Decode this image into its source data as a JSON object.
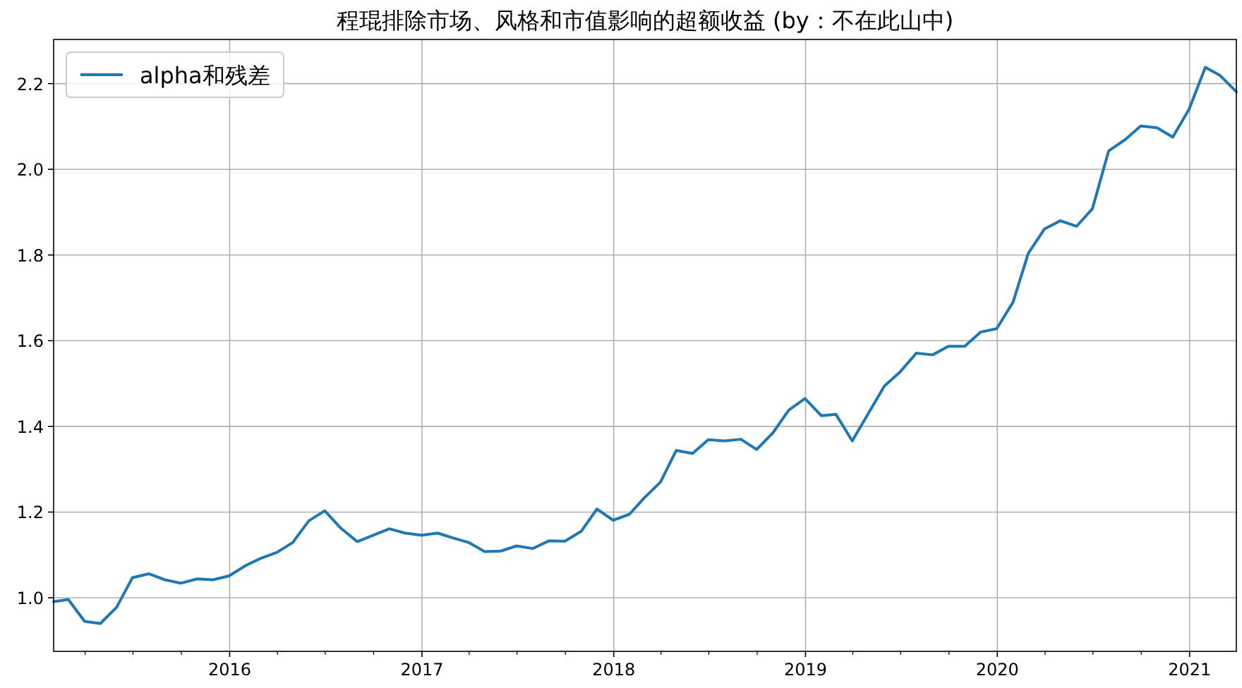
{
  "chart_data": {
    "type": "line",
    "title": "程琨排除市场、风格和市值影响的超额收益 (by：不在此山中)",
    "x": [
      "2015-01-31",
      "2015-02-28",
      "2015-03-31",
      "2015-04-30",
      "2015-05-31",
      "2015-06-30",
      "2015-07-31",
      "2015-08-31",
      "2015-09-30",
      "2015-10-31",
      "2015-11-30",
      "2015-12-31",
      "2016-01-31",
      "2016-02-29",
      "2016-03-31",
      "2016-04-30",
      "2016-05-31",
      "2016-06-30",
      "2016-07-31",
      "2016-08-31",
      "2016-09-30",
      "2016-10-31",
      "2016-11-30",
      "2016-12-31",
      "2017-01-31",
      "2017-02-28",
      "2017-03-31",
      "2017-04-30",
      "2017-05-31",
      "2017-06-30",
      "2017-07-31",
      "2017-08-31",
      "2017-09-30",
      "2017-10-31",
      "2017-11-30",
      "2017-12-31",
      "2018-01-31",
      "2018-02-28",
      "2018-03-31",
      "2018-04-30",
      "2018-05-31",
      "2018-06-30",
      "2018-07-31",
      "2018-08-31",
      "2018-09-30",
      "2018-10-31",
      "2018-11-30",
      "2018-12-31",
      "2019-01-31",
      "2019-02-28",
      "2019-03-31",
      "2019-04-30",
      "2019-05-31",
      "2019-06-30",
      "2019-07-31",
      "2019-08-31",
      "2019-09-30",
      "2019-10-31",
      "2019-11-30",
      "2019-12-31",
      "2020-01-31",
      "2020-02-29",
      "2020-03-31",
      "2020-04-30",
      "2020-05-31",
      "2020-06-30",
      "2020-07-31",
      "2020-08-31",
      "2020-09-30",
      "2020-10-31",
      "2020-11-30",
      "2020-12-31",
      "2021-01-31",
      "2021-02-28",
      "2021-03-31"
    ],
    "series": [
      {
        "name": "alpha和残差",
        "color": "#1f77b4",
        "values": [
          0.991,
          0.996,
          0.945,
          0.94,
          0.978,
          1.047,
          1.056,
          1.042,
          1.034,
          1.044,
          1.042,
          1.051,
          1.075,
          1.092,
          1.106,
          1.129,
          1.18,
          1.203,
          1.162,
          1.131,
          1.146,
          1.161,
          1.151,
          1.146,
          1.151,
          1.14,
          1.129,
          1.108,
          1.109,
          1.121,
          1.115,
          1.133,
          1.132,
          1.155,
          1.207,
          1.181,
          1.195,
          1.233,
          1.27,
          1.344,
          1.337,
          1.369,
          1.366,
          1.37,
          1.346,
          1.385,
          1.438,
          1.465,
          1.425,
          1.428,
          1.366,
          1.429,
          1.494,
          1.527,
          1.571,
          1.567,
          1.587,
          1.587,
          1.62,
          1.628,
          1.69,
          1.804,
          1.861,
          1.88,
          1.867,
          1.908,
          2.043,
          2.069,
          2.101,
          2.097,
          2.075,
          2.14,
          2.238,
          2.219,
          2.181
        ]
      }
    ],
    "xlim": [
      "2015-01-31",
      "2021-03-31"
    ],
    "xticks": [
      {
        "value": "2015-04-01",
        "label": null
      },
      {
        "value": "2015-07-01",
        "label": null
      },
      {
        "value": "2015-10-01",
        "label": null
      },
      {
        "value": "2016-01-01",
        "label": "2016"
      },
      {
        "value": "2016-04-01",
        "label": null
      },
      {
        "value": "2016-07-01",
        "label": null
      },
      {
        "value": "2016-10-01",
        "label": null
      },
      {
        "value": "2017-01-01",
        "label": "2017"
      },
      {
        "value": "2017-04-01",
        "label": null
      },
      {
        "value": "2017-07-01",
        "label": null
      },
      {
        "value": "2017-10-01",
        "label": null
      },
      {
        "value": "2018-01-01",
        "label": "2018"
      },
      {
        "value": "2018-04-01",
        "label": null
      },
      {
        "value": "2018-07-01",
        "label": null
      },
      {
        "value": "2018-10-01",
        "label": null
      },
      {
        "value": "2019-01-01",
        "label": "2019"
      },
      {
        "value": "2019-04-01",
        "label": null
      },
      {
        "value": "2019-07-01",
        "label": null
      },
      {
        "value": "2019-10-01",
        "label": null
      },
      {
        "value": "2020-01-01",
        "label": "2020"
      },
      {
        "value": "2020-04-01",
        "label": null
      },
      {
        "value": "2020-07-01",
        "label": null
      },
      {
        "value": "2020-10-01",
        "label": null
      },
      {
        "value": "2021-01-01",
        "label": "2021"
      }
    ],
    "ylim": [
      0.875,
      2.303
    ],
    "yticks": [
      {
        "value": 1.0,
        "label": "1.0"
      },
      {
        "value": 1.2,
        "label": "1.2"
      },
      {
        "value": 1.4,
        "label": "1.4"
      },
      {
        "value": 1.6,
        "label": "1.6"
      },
      {
        "value": 1.8,
        "label": "1.8"
      },
      {
        "value": 2.0,
        "label": "2.0"
      },
      {
        "value": 2.2,
        "label": "2.2"
      }
    ],
    "grid": true,
    "legend": "top left",
    "marker": "none",
    "line_style": "solid"
  }
}
